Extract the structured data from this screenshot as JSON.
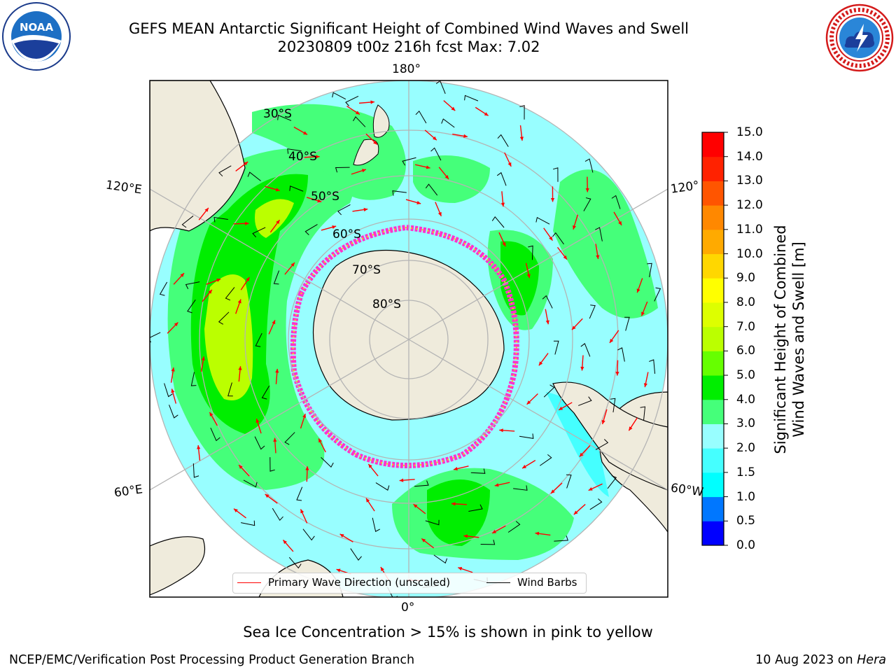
{
  "header": {
    "title_line1": "GEFS MEAN Antarctic Significant Height of Combined Wind Waves and Swell",
    "title_line2": "20230809 t00z 216h fcst   Max: 7.02"
  },
  "logos": {
    "noaa": {
      "text": "NOAA",
      "ring_text": "NATIONAL OCEANIC AND ATMOSPHERIC ADMINISTRATION · U.S. DEPARTMENT OF COMMERCE"
    },
    "nws": {
      "ring_text": "NATIONAL WEATHER SERVICE"
    }
  },
  "map": {
    "projection": "south-polar-stereographic",
    "longitude_labels": {
      "top": "180°",
      "bottom": "0°",
      "upper_left": "120°E",
      "lower_left": "60°E",
      "upper_right": "120°W",
      "lower_right": "60°W"
    },
    "latitude_labels": [
      "30°S",
      "40°S",
      "50°S",
      "60°S",
      "70°S",
      "80°S"
    ],
    "colors": {
      "land": "#efebdc",
      "ocean_low": "#98feff",
      "coast": "#000000",
      "grid": "#b4b4b4",
      "arrow": "#ff0000",
      "barb": "#000000",
      "ice": "#ff33cc"
    }
  },
  "colorbar": {
    "label_line1": "Significant Height of Combined",
    "label_line2": "Wind Waves and Swell [m]",
    "ticks": [
      "0.0",
      "0.5",
      "1.0",
      "1.5",
      "2.0",
      "3.0",
      "4.0",
      "5.0",
      "6.0",
      "7.0",
      "8.0",
      "9.0",
      "10.0",
      "11.0",
      "12.0",
      "13.0",
      "14.0",
      "15.0"
    ],
    "colors": [
      "#0000ff",
      "#0077ff",
      "#00ffff",
      "#45ffff",
      "#98feff",
      "#45ff7a",
      "#00ee00",
      "#66ff00",
      "#bbff00",
      "#ddff00",
      "#ffff00",
      "#ffd700",
      "#ffaa00",
      "#ff8800",
      "#ff5500",
      "#ff2200",
      "#ff0000"
    ]
  },
  "legend": {
    "wave_direction": "Primary Wave Direction (unscaled)",
    "wind_barbs": "Wind Barbs"
  },
  "sea_ice_note": "Sea Ice Concentration > 15% is shown in pink to yellow",
  "footer": {
    "left": "NCEP/EMC/Verification Post Processing Product Generation Branch",
    "right_date": "10 Aug 2023 on ",
    "right_machine": "Hera"
  }
}
